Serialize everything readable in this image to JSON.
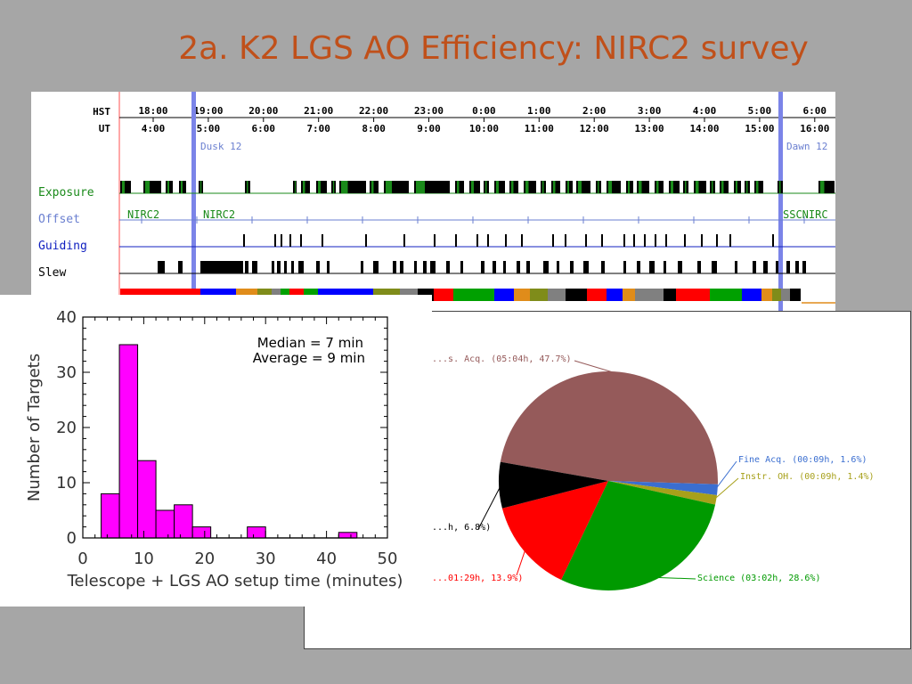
{
  "slide": {
    "title": "2a. K2 LGS AO Efficiency: NIRC2 survey"
  },
  "timeline": {
    "hst_label": "HST",
    "ut_label": "UT",
    "hst_ticks": [
      "18:00",
      "19:00",
      "20:00",
      "21:00",
      "22:00",
      "23:00",
      "0:00",
      "1:00",
      "2:00",
      "3:00",
      "4:00",
      "5:00",
      "6:00"
    ],
    "ut_ticks": [
      "4:00",
      "5:00",
      "6:00",
      "7:00",
      "8:00",
      "9:00",
      "10:00",
      "11:00",
      "12:00",
      "13:00",
      "14:00",
      "15:00",
      "16:00"
    ],
    "dusk_label": "Dusk 12",
    "dawn_label": "Dawn 12",
    "rows": [
      {
        "label": "Exposure",
        "color": "#1a8a1a"
      },
      {
        "label": "Offset",
        "color": "#6a7fd0"
      },
      {
        "label": "Guiding",
        "color": "#1020c0"
      },
      {
        "label": "Slew",
        "color": "#000000"
      }
    ],
    "instrument_labels": [
      "NIRC2",
      "NIRC2",
      "SSCNIRC"
    ],
    "activity_colors": [
      "#ff0000",
      "#0000ff",
      "#e08c1a",
      "#7f8c1a",
      "#808080",
      "#000000",
      "#00a000",
      "#ffffff"
    ]
  },
  "chart_data": [
    {
      "type": "bar",
      "chart": "histogram",
      "title": "",
      "xlabel": "Telescope + LGS AO setup time (minutes)",
      "ylabel": "Number of Targets",
      "xlim": [
        0,
        50
      ],
      "ylim": [
        0,
        40
      ],
      "xticks": [
        0,
        10,
        20,
        30,
        40,
        50
      ],
      "yticks": [
        0,
        10,
        20,
        30,
        40
      ],
      "bin_edges": [
        3,
        6,
        9,
        12,
        15,
        18,
        21,
        24,
        27,
        30,
        33,
        36,
        39,
        42,
        45
      ],
      "values": [
        8,
        35,
        14,
        5,
        6,
        2,
        0,
        0,
        2,
        0,
        0,
        0,
        0,
        1
      ],
      "annotations": [
        "Median = 7 min",
        "Average = 9 min"
      ],
      "bar_color": "#ff00ff"
    },
    {
      "type": "pie",
      "title": "",
      "slices": [
        {
          "label": "...s. Acq. (05:04h, 47.7%)",
          "value": 47.7,
          "color": "#955a5a"
        },
        {
          "label": "Fine Acq. (00:09h, 1.6%)",
          "value": 1.6,
          "color": "#3a6ed0"
        },
        {
          "label": "Instr. OH. (00:09h, 1.4%)",
          "value": 1.4,
          "color": "#a7a01a"
        },
        {
          "label": "Science (03:02h, 28.6%)",
          "value": 28.6,
          "color": "#009a00"
        },
        {
          "label": "...01:29h, 13.9%)",
          "value": 13.9,
          "color": "#ff0000"
        },
        {
          "label": "...h, 6.8%)",
          "value": 6.8,
          "color": "#000000"
        }
      ]
    }
  ]
}
